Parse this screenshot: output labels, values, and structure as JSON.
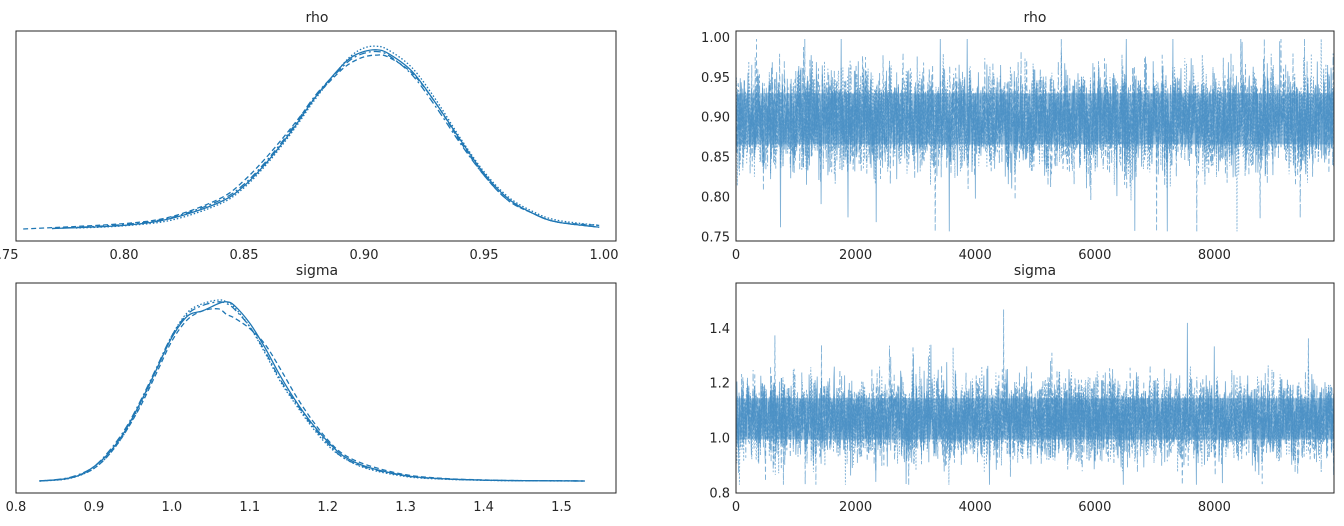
{
  "colors": {
    "line": "#1f77b4",
    "trace": "#4a90c4",
    "axis": "#262626"
  },
  "chart_data": [
    {
      "type": "line",
      "title": "rho",
      "xlim": [
        0.755,
        1.005
      ],
      "xticks": [
        "0.75",
        "0.80",
        "0.85",
        "0.90",
        "0.95",
        "1.00"
      ],
      "series": [
        {
          "style": "solid",
          "x": [
            0.77,
            0.8,
            0.82,
            0.84,
            0.85,
            0.86,
            0.87,
            0.88,
            0.89,
            0.895,
            0.9,
            0.905,
            0.91,
            0.92,
            0.93,
            0.94,
            0.95,
            0.96,
            0.97,
            0.98,
            0.998
          ],
          "y": [
            0.002,
            0.02,
            0.06,
            0.15,
            0.24,
            0.38,
            0.55,
            0.74,
            0.9,
            0.96,
            0.99,
            1.0,
            0.98,
            0.88,
            0.7,
            0.5,
            0.31,
            0.17,
            0.09,
            0.04,
            0.01
          ]
        },
        {
          "style": "dashed",
          "x": [
            0.758,
            0.8,
            0.82,
            0.84,
            0.85,
            0.86,
            0.87,
            0.88,
            0.89,
            0.895,
            0.9,
            0.905,
            0.91,
            0.92,
            0.93,
            0.94,
            0.95,
            0.96,
            0.97,
            0.98,
            0.998
          ],
          "y": [
            0.0,
            0.03,
            0.07,
            0.17,
            0.27,
            0.41,
            0.57,
            0.74,
            0.88,
            0.93,
            0.96,
            0.97,
            0.96,
            0.87,
            0.7,
            0.49,
            0.3,
            0.16,
            0.09,
            0.04,
            0.02
          ]
        },
        {
          "style": "dashdot",
          "x": [
            0.77,
            0.8,
            0.82,
            0.84,
            0.85,
            0.86,
            0.87,
            0.88,
            0.89,
            0.895,
            0.9,
            0.905,
            0.91,
            0.92,
            0.93,
            0.94,
            0.95,
            0.96,
            0.97,
            0.98,
            0.998
          ],
          "y": [
            0.003,
            0.025,
            0.065,
            0.16,
            0.25,
            0.39,
            0.56,
            0.75,
            0.89,
            0.95,
            0.98,
            0.99,
            0.97,
            0.86,
            0.68,
            0.48,
            0.3,
            0.16,
            0.09,
            0.04,
            0.01
          ]
        },
        {
          "style": "dotted",
          "x": [
            0.78,
            0.8,
            0.82,
            0.84,
            0.85,
            0.86,
            0.87,
            0.88,
            0.89,
            0.895,
            0.9,
            0.905,
            0.91,
            0.92,
            0.93,
            0.94,
            0.95,
            0.96,
            0.97,
            0.98,
            0.998
          ],
          "y": [
            0.005,
            0.018,
            0.05,
            0.14,
            0.23,
            0.37,
            0.54,
            0.73,
            0.9,
            0.97,
            1.01,
            1.02,
            1.0,
            0.9,
            0.72,
            0.51,
            0.32,
            0.18,
            0.1,
            0.05,
            0.02
          ]
        }
      ]
    },
    {
      "type": "line",
      "title": "rho",
      "xlim": [
        0,
        10000
      ],
      "ylim": [
        0.745,
        1.008
      ],
      "xticks": [
        "0",
        "2000",
        "4000",
        "6000",
        "8000"
      ],
      "xtick_values": [
        0,
        2000,
        4000,
        6000,
        8000
      ],
      "yticks": [
        "0.75",
        "0.80",
        "0.85",
        "0.90",
        "0.95",
        "1.00"
      ],
      "ytick_values": [
        0.75,
        0.8,
        0.85,
        0.9,
        0.95,
        1.0
      ],
      "trace": {
        "draws": 10000,
        "chains": 4,
        "mean": 0.898,
        "sd": 0.032,
        "min": 0.757,
        "max": 0.998
      }
    },
    {
      "type": "line",
      "title": "sigma",
      "xlim": [
        0.8,
        1.57
      ],
      "xticks": [
        "0.8",
        "0.9",
        "1.0",
        "1.1",
        "1.2",
        "1.3",
        "1.4",
        "1.5"
      ],
      "series": [
        {
          "style": "solid",
          "x": [
            0.83,
            0.86,
            0.88,
            0.9,
            0.92,
            0.94,
            0.96,
            0.98,
            1.0,
            1.02,
            1.04,
            1.06,
            1.07,
            1.08,
            1.1,
            1.12,
            1.14,
            1.16,
            1.18,
            1.2,
            1.22,
            1.25,
            1.3,
            1.35,
            1.4,
            1.45,
            1.53
          ],
          "y": [
            0.0,
            0.01,
            0.03,
            0.08,
            0.16,
            0.28,
            0.44,
            0.62,
            0.8,
            0.92,
            0.95,
            0.99,
            1.0,
            0.98,
            0.88,
            0.74,
            0.58,
            0.44,
            0.32,
            0.22,
            0.14,
            0.08,
            0.03,
            0.012,
            0.005,
            0.002,
            0.0
          ]
        },
        {
          "style": "dashed",
          "x": [
            0.83,
            0.86,
            0.88,
            0.9,
            0.92,
            0.94,
            0.96,
            0.98,
            1.0,
            1.02,
            1.04,
            1.06,
            1.07,
            1.08,
            1.1,
            1.12,
            1.14,
            1.16,
            1.18,
            1.2,
            1.22,
            1.25,
            1.3,
            1.35,
            1.4,
            1.45,
            1.53
          ],
          "y": [
            0.0,
            0.01,
            0.03,
            0.07,
            0.15,
            0.27,
            0.42,
            0.6,
            0.78,
            0.9,
            0.95,
            0.96,
            0.93,
            0.91,
            0.85,
            0.76,
            0.62,
            0.47,
            0.34,
            0.23,
            0.15,
            0.09,
            0.035,
            0.014,
            0.006,
            0.002,
            0.0
          ]
        },
        {
          "style": "dashdot",
          "x": [
            0.83,
            0.86,
            0.88,
            0.9,
            0.92,
            0.94,
            0.96,
            0.98,
            1.0,
            1.02,
            1.04,
            1.06,
            1.07,
            1.08,
            1.1,
            1.12,
            1.14,
            1.16,
            1.18,
            1.2,
            1.22,
            1.25,
            1.3,
            1.35,
            1.4,
            1.45,
            1.53
          ],
          "y": [
            0.0,
            0.012,
            0.035,
            0.08,
            0.17,
            0.29,
            0.45,
            0.63,
            0.81,
            0.93,
            0.98,
            1.0,
            0.99,
            0.96,
            0.86,
            0.72,
            0.56,
            0.43,
            0.31,
            0.21,
            0.13,
            0.075,
            0.028,
            0.011,
            0.005,
            0.002,
            0.0
          ]
        },
        {
          "style": "dotted",
          "x": [
            0.83,
            0.86,
            0.88,
            0.9,
            0.92,
            0.94,
            0.96,
            0.98,
            1.0,
            1.02,
            1.04,
            1.06,
            1.07,
            1.08,
            1.1,
            1.12,
            1.14,
            1.16,
            1.18,
            1.2,
            1.22,
            1.25,
            1.3,
            1.35,
            1.4,
            1.45,
            1.53
          ],
          "y": [
            0.0,
            0.008,
            0.028,
            0.07,
            0.15,
            0.27,
            0.43,
            0.62,
            0.81,
            0.94,
            0.99,
            1.01,
            1.0,
            0.97,
            0.86,
            0.71,
            0.55,
            0.42,
            0.3,
            0.2,
            0.13,
            0.07,
            0.025,
            0.01,
            0.004,
            0.001,
            0.0
          ]
        }
      ]
    },
    {
      "type": "line",
      "title": "sigma",
      "xlim": [
        0,
        10000
      ],
      "ylim": [
        0.8,
        1.565
      ],
      "xticks": [
        "0",
        "2000",
        "4000",
        "6000",
        "8000"
      ],
      "xtick_values": [
        0,
        2000,
        4000,
        6000,
        8000
      ],
      "yticks": [
        "0.8",
        "1.0",
        "1.2",
        "1.4"
      ],
      "ytick_values": [
        0.8,
        1.0,
        1.2,
        1.4
      ],
      "trace": {
        "draws": 10000,
        "chains": 4,
        "mean": 1.07,
        "sd": 0.075,
        "min": 0.83,
        "max": 1.52
      }
    }
  ]
}
